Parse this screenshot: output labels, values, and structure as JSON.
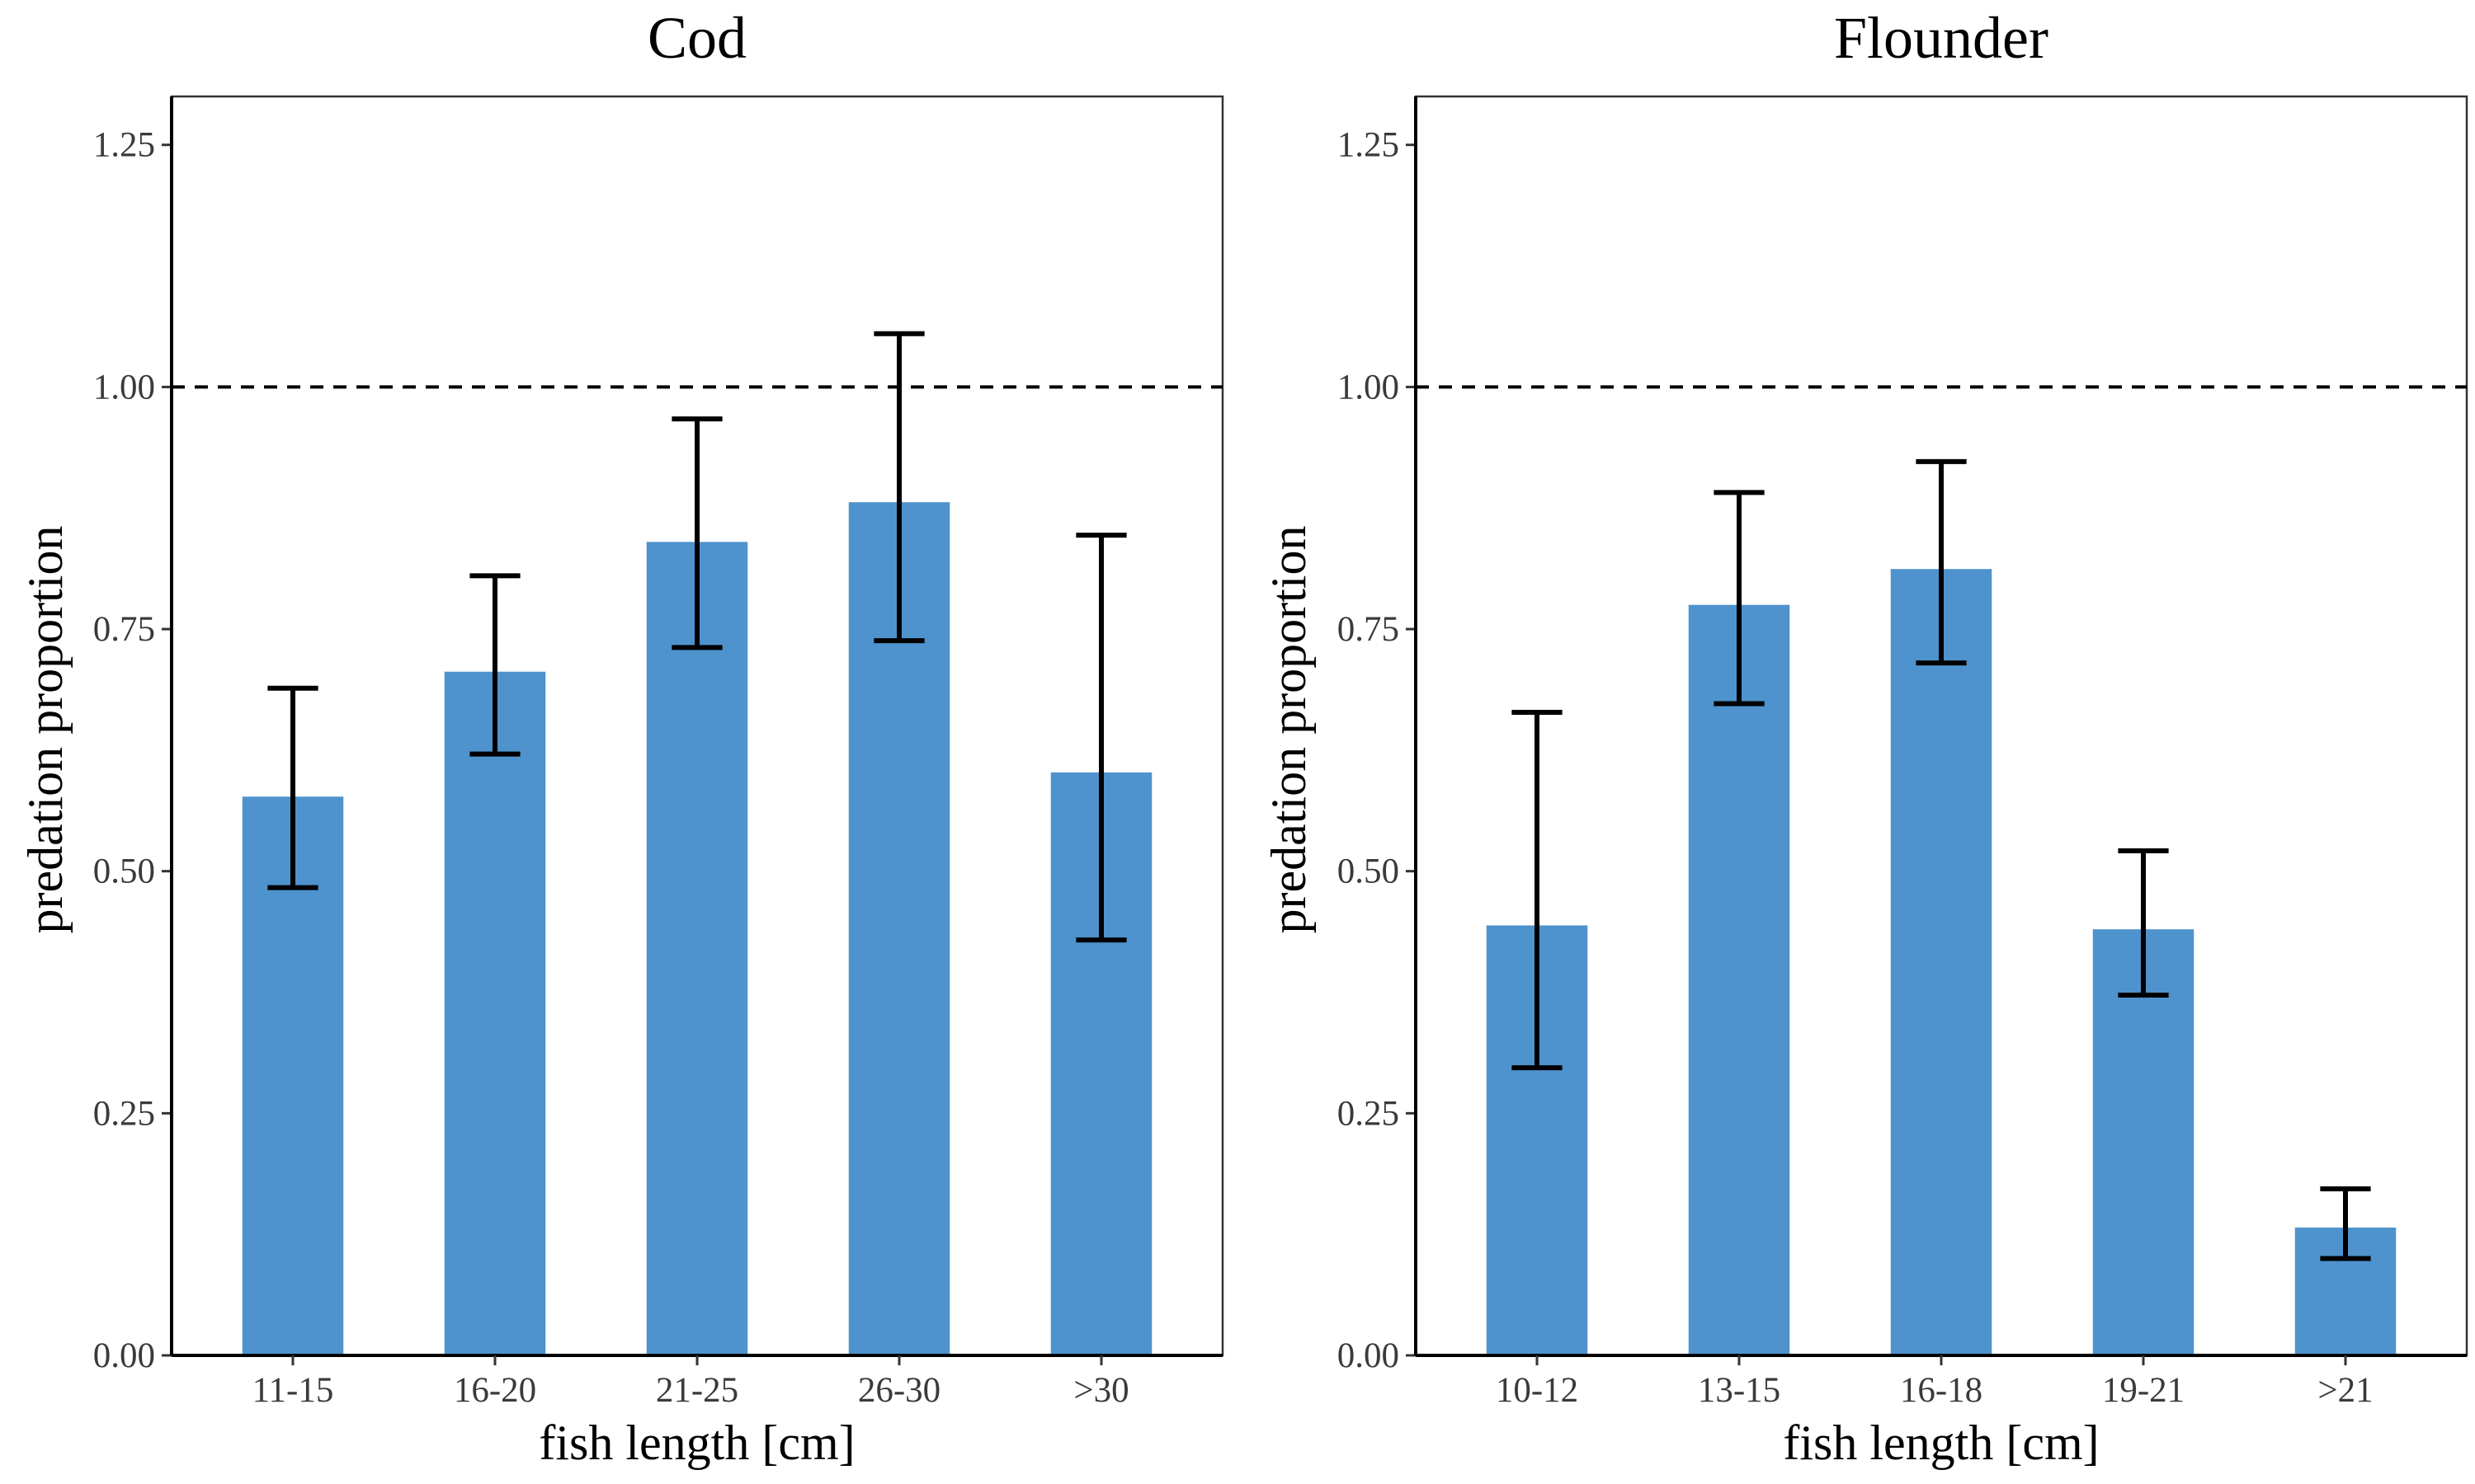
{
  "chart_data": [
    {
      "type": "bar",
      "title": "Cod",
      "xlabel": "fish length [cm]",
      "ylabel": "predation proportion",
      "categories": [
        "11-15",
        "16-20",
        "21-25",
        "26-30",
        ">30"
      ],
      "values": [
        0.577,
        0.706,
        0.84,
        0.881,
        0.602
      ],
      "error_low": [
        0.483,
        0.621,
        0.731,
        0.738,
        0.429
      ],
      "error_high": [
        0.689,
        0.805,
        0.967,
        1.055,
        0.847
      ],
      "ylim": [
        0,
        1.3
      ],
      "yticks": [
        "0.00",
        "0.25",
        "0.50",
        "0.75",
        "1.00",
        "1.25"
      ],
      "reference_line": 1.0,
      "grid": false,
      "bar_color": "#4e93cd"
    },
    {
      "type": "bar",
      "title": "Flounder",
      "xlabel": "fish length [cm]",
      "ylabel": "predation proportion",
      "categories": [
        "10-12",
        "13-15",
        "16-18",
        "19-21",
        ">21"
      ],
      "values": [
        0.444,
        0.775,
        0.812,
        0.44,
        0.132
      ],
      "error_low": [
        0.297,
        0.673,
        0.715,
        0.372,
        0.1
      ],
      "error_high": [
        0.664,
        0.891,
        0.923,
        0.521,
        0.172
      ],
      "ylim": [
        0,
        1.3
      ],
      "yticks": [
        "0.00",
        "0.25",
        "0.50",
        "0.75",
        "1.00",
        "1.25"
      ],
      "reference_line": 1.0,
      "grid": false,
      "bar_color": "#4e93cd"
    }
  ]
}
